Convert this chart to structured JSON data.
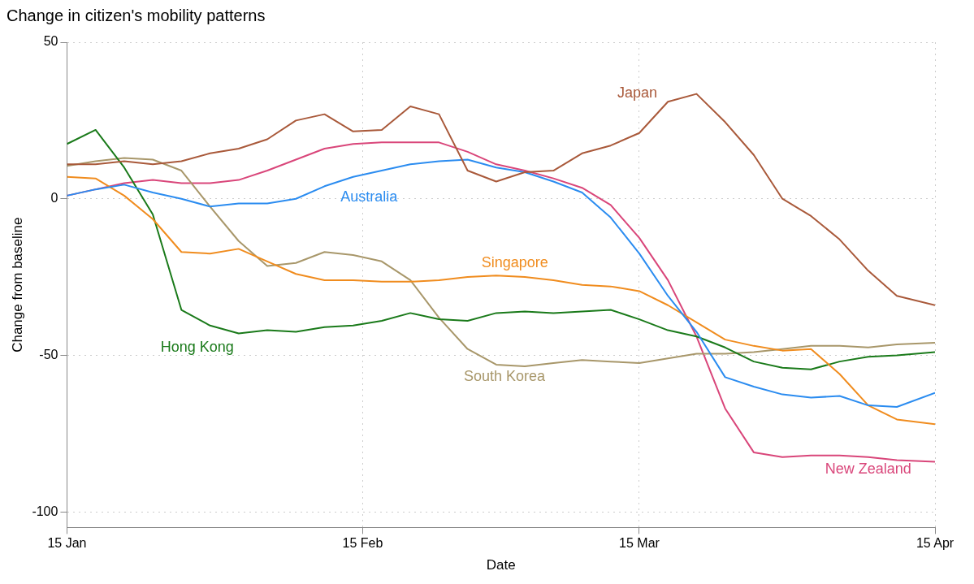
{
  "chart_data": {
    "type": "line",
    "title": "Change in citizen's mobility patterns",
    "xlabel": "Date",
    "ylabel": "Change from baseline",
    "x": [
      "--01-15",
      "--01-18",
      "--01-21",
      "--01-24",
      "--01-27",
      "--01-30",
      "--02-02",
      "--02-05",
      "--02-08",
      "--02-11",
      "--02-14",
      "--02-17",
      "--02-20",
      "--02-23",
      "--02-26",
      "--02-29",
      "--03-03",
      "--03-06",
      "--03-09",
      "--03-12",
      "--03-15",
      "--03-18",
      "--03-21",
      "--03-24",
      "--03-27",
      "--03-30",
      "--04-02",
      "--04-05",
      "--04-08",
      "--04-11",
      "--04-15"
    ],
    "series": [
      {
        "name": "Japan",
        "color": "#a9593a",
        "values": [
          11,
          11,
          12,
          11,
          12,
          14.5,
          16,
          19,
          25,
          27,
          21.5,
          22,
          29.5,
          27,
          9,
          5.5,
          8.5,
          9,
          14.5,
          17,
          21,
          31,
          33.5,
          24.5,
          14,
          0,
          -5.5,
          -13,
          -23,
          -31,
          -34
        ]
      },
      {
        "name": "Australia",
        "color": "#2b8cf0",
        "values": [
          1,
          3,
          4.5,
          2,
          0,
          -2.5,
          -1.5,
          -1.5,
          0,
          4,
          7,
          9,
          11,
          12,
          12.5,
          10,
          8.5,
          5.5,
          2,
          -6,
          -17.5,
          -31,
          -42.5,
          -57,
          -60,
          -62.5,
          -63.5,
          -63,
          -66,
          -66.5,
          -62
        ]
      },
      {
        "name": "Singapore",
        "color": "#f08c1e",
        "values": [
          7,
          6.5,
          1,
          -6.5,
          -17,
          -17.5,
          -16,
          -20,
          -24,
          -26,
          -26,
          -26.5,
          -26.5,
          -26,
          -25,
          -24.5,
          -25,
          -26,
          -27.5,
          -28,
          -29.5,
          -34,
          -39.5,
          -45,
          -47,
          -48.5,
          -48,
          -56,
          -66,
          -70.5,
          -72
        ]
      },
      {
        "name": "Hong Kong",
        "color": "#1a7a1a",
        "values": [
          17.5,
          22,
          10,
          -5,
          -35.5,
          -40.5,
          -43,
          -42,
          -42.5,
          -41,
          -40.5,
          -39,
          -36.5,
          -38.5,
          -39,
          -36.5,
          -36,
          -36.5,
          -36,
          -35.5,
          -38.5,
          -42,
          -44,
          -47.5,
          -52,
          -54,
          -54.5,
          -52,
          -50.5,
          -50,
          -49
        ]
      },
      {
        "name": "South Korea",
        "color": "#a8976a",
        "values": [
          10.5,
          12,
          13,
          12.5,
          9,
          -2.5,
          -13.5,
          -21.5,
          -20.5,
          -17,
          -18,
          -20,
          -26,
          -38,
          -48,
          -53,
          -53.5,
          -52.5,
          -51.5,
          -52,
          -52.5,
          -51,
          -49.5,
          -49.5,
          -49,
          -48,
          -47,
          -47,
          -47.5,
          -46.5,
          -46
        ]
      },
      {
        "name": "New Zealand",
        "color": "#d9467a",
        "values": [
          1,
          3,
          5,
          6,
          5,
          5,
          6,
          9,
          12.5,
          16,
          17.5,
          18,
          18,
          18,
          15,
          11,
          9,
          6.5,
          3.5,
          -2,
          -12.5,
          -26,
          -44,
          -67,
          -81,
          -82.5,
          -82,
          -82,
          -82.5,
          -83.5,
          -84
        ]
      }
    ],
    "xlim": [
      "--01-15",
      "--04-15"
    ],
    "xticks": [
      {
        "value": "--01-15",
        "label": "15 Jan"
      },
      {
        "value": "--02-15",
        "label": "15 Feb"
      },
      {
        "value": "--03-15",
        "label": "15 Mar"
      },
      {
        "value": "--04-15",
        "label": "15 Apr"
      }
    ],
    "ylim": [
      -105,
      50
    ],
    "yticks": [
      -100,
      -50,
      0,
      50
    ],
    "grid": true,
    "legend": false,
    "marker": "none",
    "line_style": "solid"
  }
}
